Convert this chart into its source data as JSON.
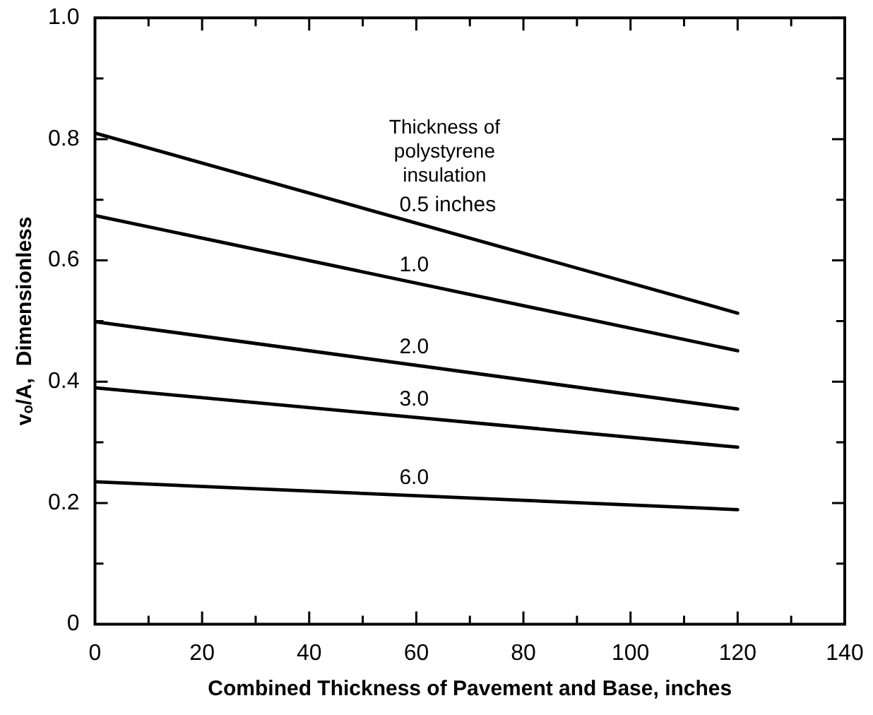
{
  "chart_data": {
    "type": "line",
    "xlabel": "Combined Thickness of Pavement and Base, inches",
    "ylabel": "vₒ/A,  Dimensionless",
    "legend_title": "Thickness of polystyrene insulation",
    "x": [
      0,
      120
    ],
    "series": [
      {
        "name": "0.5 inches",
        "color": "#000000",
        "values": [
          0.81,
          0.513
        ]
      },
      {
        "name": "1.0",
        "color": "#000000",
        "values": [
          0.674,
          0.451
        ]
      },
      {
        "name": "2.0",
        "color": "#000000",
        "values": [
          0.499,
          0.355
        ]
      },
      {
        "name": "3.0",
        "color": "#000000",
        "values": [
          0.39,
          0.292
        ]
      },
      {
        "name": "6.0",
        "color": "#000000",
        "values": [
          0.235,
          0.189
        ]
      }
    ],
    "xlim": [
      0,
      140
    ],
    "xticks": [
      0,
      {
        "value": 10,
        "label": null
      },
      20,
      {
        "value": 30,
        "label": null
      },
      40,
      {
        "value": 50,
        "label": null
      },
      60,
      {
        "value": 70,
        "label": null
      },
      80,
      {
        "value": 90,
        "label": null
      },
      100,
      {
        "value": 110,
        "label": null
      },
      120,
      {
        "value": 130,
        "label": null
      },
      140
    ],
    "ylim": [
      0,
      1.0
    ],
    "yticks": [
      0,
      {
        "value": 0.1,
        "label": null
      },
      0.2,
      {
        "value": 0.3,
        "label": null
      },
      0.4,
      {
        "value": 0.5,
        "label": null
      },
      0.6,
      {
        "value": 0.7,
        "label": null
      },
      0.8,
      {
        "value": 0.9,
        "label": null
      },
      {
        "value": 1.0,
        "label": "1.0"
      }
    ],
    "grid": false,
    "legend": false,
    "marker": "none",
    "line_style": "solid"
  }
}
